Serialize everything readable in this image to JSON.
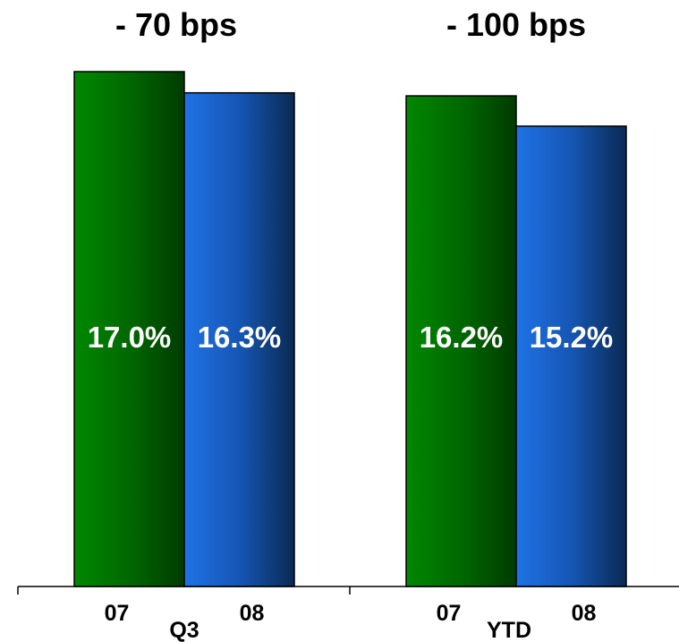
{
  "chart_data": {
    "type": "bar",
    "groups": [
      {
        "label": "Q3",
        "change_label": "- 70 bps",
        "bars": [
          {
            "category": "07",
            "value": 17.0,
            "label": "17.0%"
          },
          {
            "category": "08",
            "value": 16.3,
            "label": "16.3%"
          }
        ]
      },
      {
        "label": "YTD",
        "change_label": "- 100 bps",
        "bars": [
          {
            "category": "07",
            "value": 16.2,
            "label": "16.2%"
          },
          {
            "category": "08",
            "value": 15.2,
            "label": "15.2%"
          }
        ]
      }
    ],
    "ylim": [
      0,
      17.0
    ],
    "grid": false,
    "colors": {
      "07": "#007a00",
      "08": "#1a66d6"
    }
  }
}
